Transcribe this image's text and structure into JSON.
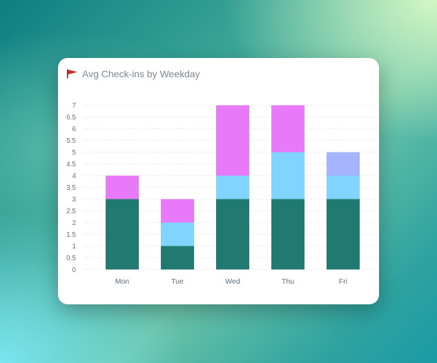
{
  "card": {
    "title": "Avg Check-ins by Weekday",
    "title_icon": "red-flag-icon"
  },
  "chart_data": {
    "type": "bar",
    "stacked": true,
    "title": "Avg Check-ins by Weekday",
    "xlabel": "",
    "ylabel": "",
    "categories": [
      "Mon",
      "Tue",
      "Wed",
      "Thu",
      "Fri"
    ],
    "yticks": [
      "0",
      "0.5",
      "1",
      "1.5",
      "2",
      "2.5",
      "3",
      "3.5",
      "4",
      "4.5",
      "5",
      "5.5",
      "6",
      "6.5",
      "7"
    ],
    "ylim": [
      0,
      7
    ],
    "grid": true,
    "legend": "none",
    "series": [
      {
        "color": "#207a71",
        "values": [
          3,
          1,
          3,
          3,
          3
        ]
      },
      {
        "color": "#80d4fd",
        "values": [
          0,
          1,
          1,
          2,
          1
        ]
      },
      {
        "color": "#e879f9",
        "values": [
          1,
          1,
          3,
          2,
          0
        ]
      },
      {
        "color": "#a5b4fc",
        "values": [
          0,
          0,
          0,
          0,
          1
        ]
      }
    ]
  }
}
